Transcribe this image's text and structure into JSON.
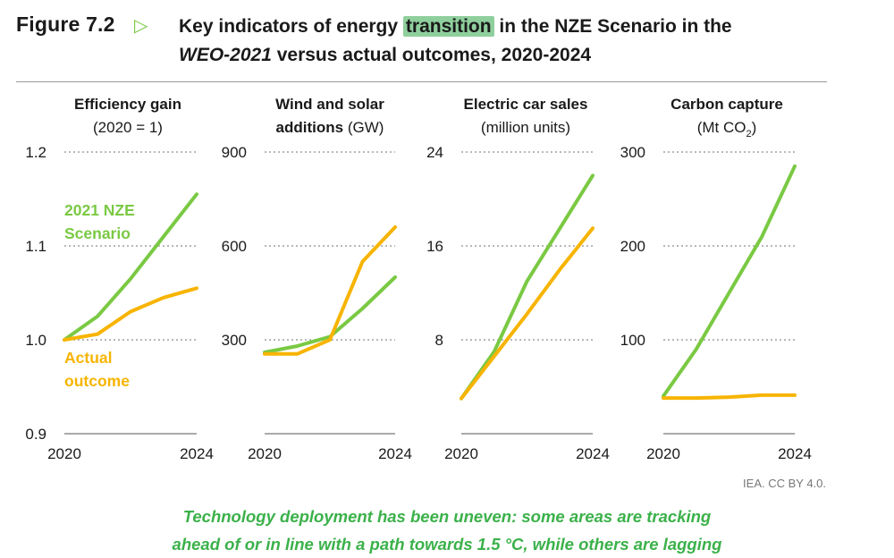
{
  "figure": {
    "label": "Figure 7.2",
    "title_part1": "Key indicators of energy ",
    "title_highlight": "transition",
    "title_part2": " in the NZE Scenario in the",
    "title_line2_italic": "WEO-2021",
    "title_line2_rest": " versus actual outcomes, 2020-2024"
  },
  "colors": {
    "nze": "#7ac943",
    "actual": "#f7b400",
    "grid": "#a0a0a0",
    "highlight": "#8fcf9d"
  },
  "series_labels": {
    "nze_line1": "2021 NZE",
    "nze_line2": "Scenario",
    "actual_line1": "Actual",
    "actual_line2": "outcome"
  },
  "chart_data": [
    {
      "type": "line",
      "title_bold": "Efficiency gain",
      "title_line2": "(2020 = 1)",
      "x": [
        2020,
        2021,
        2022,
        2023,
        2024
      ],
      "xtick_labels": [
        "2020",
        "2024"
      ],
      "ylim": [
        0.9,
        1.2
      ],
      "yticks": [
        0.9,
        1.0,
        1.1,
        1.2
      ],
      "ytick_labels": [
        "0.9",
        "1.0",
        "1.1",
        "1.2"
      ],
      "series": [
        {
          "name": "2021 NZE Scenario",
          "values": [
            1.0,
            1.025,
            1.065,
            1.11,
            1.155
          ]
        },
        {
          "name": "Actual outcome",
          "values": [
            1.0,
            1.006,
            1.03,
            1.045,
            1.055
          ]
        }
      ]
    },
    {
      "type": "line",
      "title_bold": "Wind and solar",
      "title_line2_bold": "additions",
      "title_line2_unit": " (GW)",
      "x": [
        2020,
        2021,
        2022,
        2023,
        2024
      ],
      "xtick_labels": [
        "2020",
        "2024"
      ],
      "ylim": [
        0,
        900
      ],
      "yticks": [
        300,
        600,
        900
      ],
      "ytick_labels": [
        "300",
        "600",
        "900"
      ],
      "series": [
        {
          "name": "2021 NZE Scenario",
          "values": [
            260,
            280,
            310,
            400,
            500
          ]
        },
        {
          "name": "Actual outcome",
          "values": [
            255,
            255,
            300,
            550,
            660
          ]
        }
      ]
    },
    {
      "type": "line",
      "title_bold": "Electric car sales",
      "title_line2": "(million units)",
      "x": [
        2020,
        2021,
        2022,
        2023,
        2024
      ],
      "xtick_labels": [
        "2020",
        "2024"
      ],
      "ylim": [
        0,
        24
      ],
      "yticks": [
        8,
        16,
        24
      ],
      "ytick_labels": [
        "8",
        "16",
        "24"
      ],
      "series": [
        {
          "name": "2021 NZE Scenario",
          "values": [
            3,
            7,
            13,
            17.5,
            22
          ]
        },
        {
          "name": "Actual outcome",
          "values": [
            3,
            6.6,
            10.2,
            14,
            17.5
          ]
        }
      ]
    },
    {
      "type": "line",
      "title_bold": "Carbon capture",
      "title_line2": "(Mt CO",
      "title_line2_sub": "2",
      "title_line2_end": ")",
      "x": [
        2020,
        2021,
        2022,
        2023,
        2024
      ],
      "xtick_labels": [
        "2020",
        "2024"
      ],
      "ylim": [
        0,
        300
      ],
      "yticks": [
        100,
        200,
        300
      ],
      "ytick_labels": [
        "100",
        "200",
        "300"
      ],
      "series": [
        {
          "name": "2021 NZE Scenario",
          "values": [
            40,
            90,
            150,
            210,
            285
          ]
        },
        {
          "name": "Actual outcome",
          "values": [
            38,
            38,
            39,
            41,
            41
          ]
        }
      ]
    }
  ],
  "source_note": "IEA. CC BY 4.0.",
  "caption": {
    "line1": "Technology deployment has been uneven: some areas are tracking",
    "line2": "ahead of or in line with a path towards 1.5 °C, while others are lagging"
  }
}
